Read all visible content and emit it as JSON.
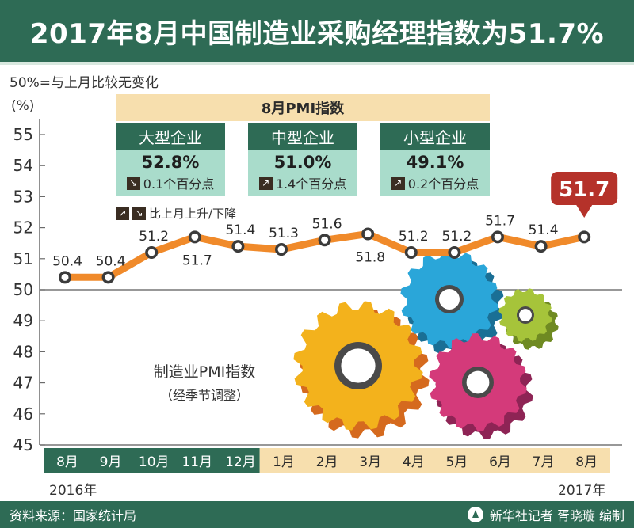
{
  "title": "2017年8月中国制造业采购经理指数为51.7%",
  "note": "50%=与上月比较无变化",
  "unit": "(%)",
  "pmi_box_title": "8月PMI指数",
  "cards": [
    {
      "name": "大型企业",
      "value": "52.8%",
      "direction": "down",
      "change": "0.1个百分点"
    },
    {
      "name": "中型企业",
      "value": "51.0%",
      "direction": "up",
      "change": "1.4个百分点"
    },
    {
      "name": "小型企业",
      "value": "49.1%",
      "direction": "up",
      "change": "0.2个百分点"
    }
  ],
  "arrow_legend": "比上月上升/下降",
  "series_label": "制造业PMI指数",
  "series_sublabel": "（经季节调整）",
  "year_start": "2016年",
  "year_end": "2017年",
  "source": "资料来源：国家统计局",
  "credit": "新华社记者  胥晓璇  编制",
  "colors": {
    "brand_green": "#2e6b55",
    "line_orange": "#f08a2a",
    "card_mint": "#a9dccb",
    "pale_yellow": "#f7dfae",
    "callout_red": "#b5322a"
  },
  "chart_data": {
    "type": "line",
    "categories": [
      "8月",
      "9月",
      "10月",
      "11月",
      "12月",
      "1月",
      "2月",
      "3月",
      "4月",
      "5月",
      "6月",
      "7月",
      "8月"
    ],
    "series": [
      {
        "name": "制造业PMI指数",
        "values": [
          50.4,
          50.4,
          51.2,
          51.7,
          51.4,
          51.3,
          51.6,
          51.8,
          51.2,
          51.2,
          51.7,
          51.4,
          51.7
        ]
      }
    ],
    "highlight_value": "51.7",
    "yticks": [
      "55",
      "54",
      "53",
      "52",
      "51",
      "50",
      "49",
      "48",
      "47",
      "46",
      "45"
    ],
    "ylim": [
      45,
      55
    ],
    "baseline": 50
  }
}
